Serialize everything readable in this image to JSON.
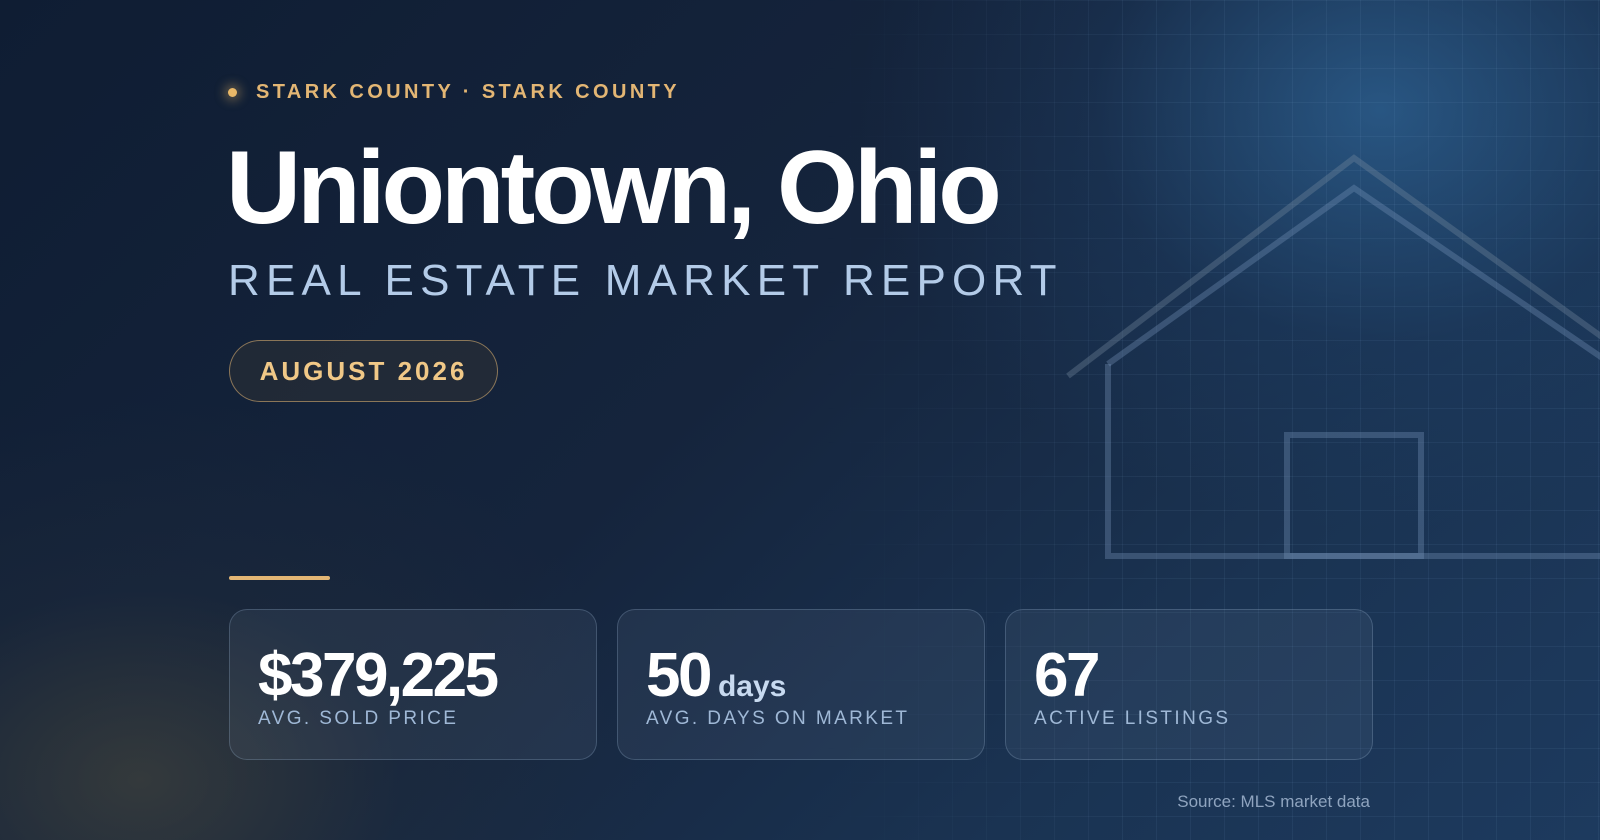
{
  "header": {
    "eyebrow": "STARK COUNTY · STARK COUNTY",
    "title": "Uniontown, Ohio",
    "subtitle": "REAL ESTATE MARKET REPORT",
    "date_badge": "AUGUST 2026"
  },
  "stats": [
    {
      "value": "$379,225",
      "unit": "",
      "label": "AVG. SOLD PRICE"
    },
    {
      "value": "50",
      "unit": "days",
      "label": "AVG. DAYS ON MARKET"
    },
    {
      "value": "67",
      "unit": "",
      "label": "ACTIVE LISTINGS"
    }
  ],
  "footer": {
    "source": "Source: MLS market data"
  },
  "colors": {
    "accent": "#e3b674",
    "background": "#142238",
    "subtitle": "#b3cbe8"
  },
  "icons": {
    "decor": "house-outline-icon",
    "bullet": "dot-icon"
  }
}
